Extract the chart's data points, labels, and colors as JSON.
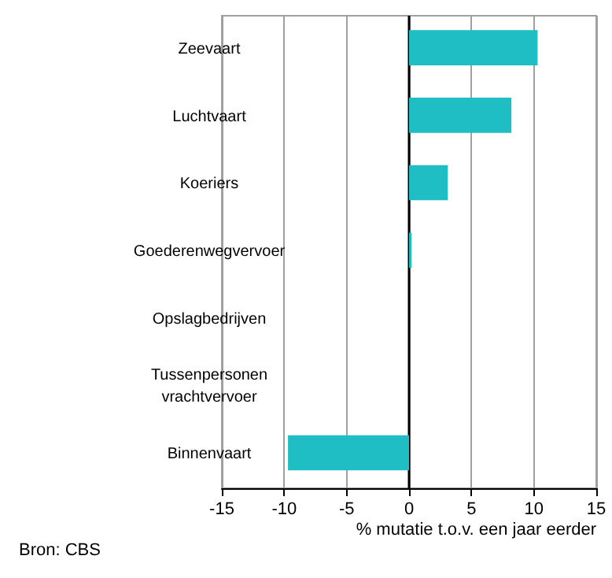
{
  "chart_data": {
    "type": "bar",
    "orientation": "horizontal",
    "categories": [
      "Zeevaart",
      "Luchtvaart",
      "Koeriers",
      "Goederenwegvervoer",
      "Opslagbedrijven",
      "Tussenpersonen\nvrachtvervoer",
      "Binnenvaart"
    ],
    "values": [
      10.3,
      8.2,
      3.1,
      0.2,
      0,
      0,
      -9.7
    ],
    "color": "#1fbdc4",
    "xlim": [
      -15,
      15
    ],
    "xticks": [
      -15,
      -10,
      -5,
      0,
      5,
      10,
      15
    ],
    "xlabel": "% mutatie t.o.v. een jaar eerder",
    "grid": "x",
    "ref_lines": [
      {
        "axis": "x",
        "value": 0,
        "color": "#000000"
      }
    ],
    "annotations": [
      "Bron: CBS"
    ]
  }
}
